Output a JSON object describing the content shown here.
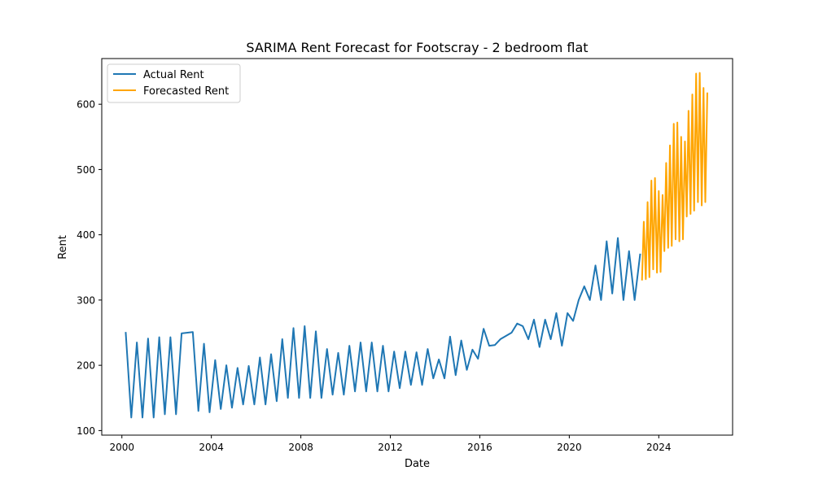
{
  "chart_data": {
    "type": "line",
    "title": "SARIMA Rent Forecast for Footscray - 2 bedroom flat",
    "xlabel": "Date",
    "ylabel": "Rent",
    "xlim": [
      1999.1,
      2027.3
    ],
    "ylim": [
      93,
      670
    ],
    "x_ticks": [
      2000,
      2004,
      2008,
      2012,
      2016,
      2020,
      2024
    ],
    "y_ticks": [
      100,
      200,
      300,
      400,
      500,
      600
    ],
    "grid": false,
    "legend_position": "top-left",
    "series": [
      {
        "name": "Actual Rent",
        "color": "#1f77b4",
        "points": [
          [
            2000.17,
            251
          ],
          [
            2000.42,
            120
          ],
          [
            2000.67,
            235
          ],
          [
            2000.92,
            120
          ],
          [
            2001.17,
            241
          ],
          [
            2001.42,
            120
          ],
          [
            2001.67,
            243
          ],
          [
            2001.92,
            125
          ],
          [
            2002.17,
            243
          ],
          [
            2002.42,
            125
          ],
          [
            2002.67,
            249
          ],
          [
            2003.17,
            251
          ],
          [
            2003.42,
            130
          ],
          [
            2003.67,
            233
          ],
          [
            2003.92,
            128
          ],
          [
            2004.17,
            208
          ],
          [
            2004.42,
            133
          ],
          [
            2004.67,
            200
          ],
          [
            2004.92,
            135
          ],
          [
            2005.17,
            196
          ],
          [
            2005.42,
            140
          ],
          [
            2005.67,
            199
          ],
          [
            2005.92,
            140
          ],
          [
            2006.17,
            212
          ],
          [
            2006.42,
            140
          ],
          [
            2006.67,
            217
          ],
          [
            2006.92,
            145
          ],
          [
            2007.17,
            240
          ],
          [
            2007.42,
            150
          ],
          [
            2007.67,
            257
          ],
          [
            2007.92,
            150
          ],
          [
            2008.17,
            260
          ],
          [
            2008.42,
            150
          ],
          [
            2008.67,
            252
          ],
          [
            2008.92,
            150
          ],
          [
            2009.17,
            225
          ],
          [
            2009.42,
            155
          ],
          [
            2009.67,
            219
          ],
          [
            2009.92,
            155
          ],
          [
            2010.17,
            230
          ],
          [
            2010.42,
            160
          ],
          [
            2010.67,
            235
          ],
          [
            2010.92,
            160
          ],
          [
            2011.17,
            235
          ],
          [
            2011.42,
            160
          ],
          [
            2011.67,
            230
          ],
          [
            2011.92,
            160
          ],
          [
            2012.17,
            221
          ],
          [
            2012.42,
            165
          ],
          [
            2012.67,
            221
          ],
          [
            2012.92,
            170
          ],
          [
            2013.17,
            220
          ],
          [
            2013.42,
            170
          ],
          [
            2013.67,
            225
          ],
          [
            2013.92,
            180
          ],
          [
            2014.17,
            209
          ],
          [
            2014.42,
            180
          ],
          [
            2014.67,
            244
          ],
          [
            2014.92,
            185
          ],
          [
            2015.17,
            238
          ],
          [
            2015.42,
            193
          ],
          [
            2015.67,
            224
          ],
          [
            2015.92,
            210
          ],
          [
            2016.17,
            256
          ],
          [
            2016.42,
            230
          ],
          [
            2016.67,
            231
          ],
          [
            2016.92,
            240
          ],
          [
            2017.17,
            245
          ],
          [
            2017.42,
            250
          ],
          [
            2017.67,
            264
          ],
          [
            2017.92,
            260
          ],
          [
            2018.17,
            240
          ],
          [
            2018.42,
            270
          ],
          [
            2018.67,
            228
          ],
          [
            2018.92,
            270
          ],
          [
            2019.17,
            240
          ],
          [
            2019.42,
            280
          ],
          [
            2019.67,
            230
          ],
          [
            2019.92,
            280
          ],
          [
            2020.17,
            268
          ],
          [
            2020.42,
            300
          ],
          [
            2020.67,
            321
          ],
          [
            2020.92,
            300
          ],
          [
            2021.17,
            353
          ],
          [
            2021.42,
            300
          ],
          [
            2021.67,
            390
          ],
          [
            2021.92,
            310
          ],
          [
            2022.17,
            395
          ],
          [
            2022.42,
            300
          ],
          [
            2022.67,
            375
          ],
          [
            2022.92,
            300
          ],
          [
            2023.17,
            371
          ]
        ]
      },
      {
        "name": "Forecasted Rent",
        "color": "#ffa500",
        "points": [
          [
            2023.25,
            330
          ],
          [
            2023.33,
            420
          ],
          [
            2023.42,
            332
          ],
          [
            2023.5,
            450
          ],
          [
            2023.58,
            335
          ],
          [
            2023.67,
            483
          ],
          [
            2023.75,
            347
          ],
          [
            2023.83,
            487
          ],
          [
            2023.92,
            342
          ],
          [
            2024.0,
            467
          ],
          [
            2024.08,
            343
          ],
          [
            2024.17,
            461
          ],
          [
            2024.25,
            375
          ],
          [
            2024.33,
            510
          ],
          [
            2024.42,
            380
          ],
          [
            2024.5,
            537
          ],
          [
            2024.58,
            383
          ],
          [
            2024.67,
            570
          ],
          [
            2024.75,
            393
          ],
          [
            2024.83,
            572
          ],
          [
            2024.92,
            390
          ],
          [
            2025.0,
            550
          ],
          [
            2025.08,
            393
          ],
          [
            2025.17,
            543
          ],
          [
            2025.25,
            428
          ],
          [
            2025.33,
            590
          ],
          [
            2025.42,
            432
          ],
          [
            2025.5,
            615
          ],
          [
            2025.58,
            437
          ],
          [
            2025.67,
            647
          ],
          [
            2025.75,
            450
          ],
          [
            2025.83,
            648
          ],
          [
            2025.92,
            445
          ],
          [
            2026.0,
            625
          ],
          [
            2026.08,
            450
          ],
          [
            2026.17,
            618
          ]
        ]
      }
    ]
  }
}
